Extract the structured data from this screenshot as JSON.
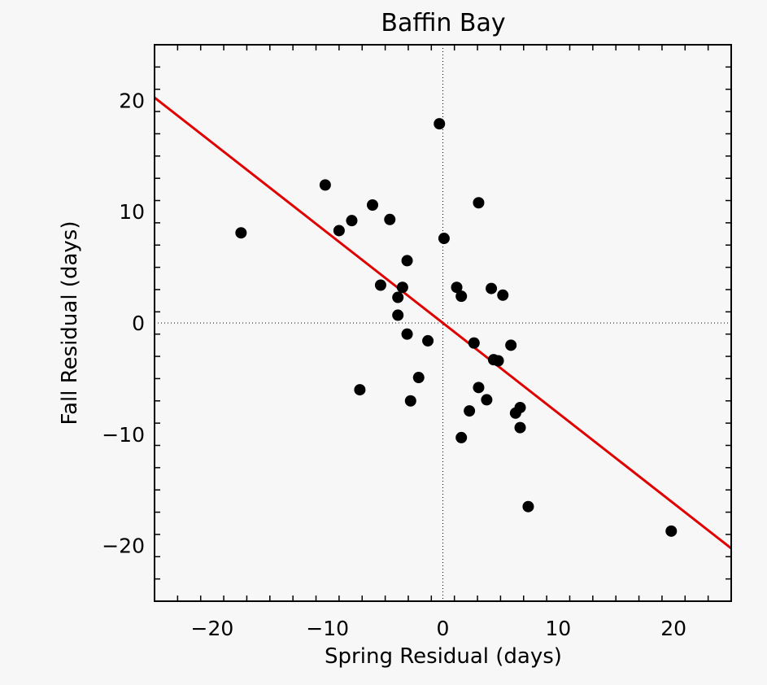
{
  "chart_data": {
    "type": "scatter",
    "title": "Baffin Bay",
    "xlabel": "Spring Residual (days)",
    "ylabel": "Fall Residual (days)",
    "xlim": [
      -25,
      25
    ],
    "ylim": [
      -25,
      25
    ],
    "xticks": [
      -20,
      -10,
      0,
      10,
      20
    ],
    "yticks": [
      -20,
      -10,
      0,
      10,
      20
    ],
    "x_tick_labels": [
      "−20",
      "−10",
      "0",
      "10",
      "20"
    ],
    "y_tick_labels": [
      "−20",
      "−10",
      "0",
      "10",
      "20"
    ],
    "grid": false,
    "zero_lines": true,
    "colors": {
      "points": "#000000",
      "fit_line": "#e00000",
      "background": "#f7f7f7"
    },
    "series": [
      {
        "points": [
          [
            -17.5,
            8.1
          ],
          [
            -10.2,
            12.4
          ],
          [
            -9.0,
            8.3
          ],
          [
            -7.9,
            9.2
          ],
          [
            -7.2,
            -6.0
          ],
          [
            -6.1,
            10.6
          ],
          [
            -5.4,
            3.4
          ],
          [
            -4.6,
            9.3
          ],
          [
            -3.9,
            2.3
          ],
          [
            -3.9,
            0.7
          ],
          [
            -3.5,
            3.2
          ],
          [
            -3.1,
            5.6
          ],
          [
            -3.1,
            -1.0
          ],
          [
            -2.8,
            -7.0
          ],
          [
            -2.1,
            -4.9
          ],
          [
            -1.3,
            -1.6
          ],
          [
            -0.3,
            17.9
          ],
          [
            0.1,
            7.6
          ],
          [
            1.2,
            3.2
          ],
          [
            1.6,
            2.4
          ],
          [
            1.6,
            -10.3
          ],
          [
            2.3,
            -7.9
          ],
          [
            2.7,
            -1.8
          ],
          [
            3.1,
            10.8
          ],
          [
            3.1,
            -5.8
          ],
          [
            3.8,
            -6.9
          ],
          [
            4.2,
            3.1
          ],
          [
            4.4,
            -3.3
          ],
          [
            4.8,
            -3.4
          ],
          [
            5.2,
            2.5
          ],
          [
            5.9,
            -2.0
          ],
          [
            6.3,
            -8.1
          ],
          [
            6.7,
            -7.6
          ],
          [
            6.7,
            -9.4
          ],
          [
            7.4,
            -16.5
          ],
          [
            19.8,
            -18.7
          ]
        ]
      }
    ],
    "fit_line": {
      "slope": -0.81,
      "intercept": 0
    }
  }
}
